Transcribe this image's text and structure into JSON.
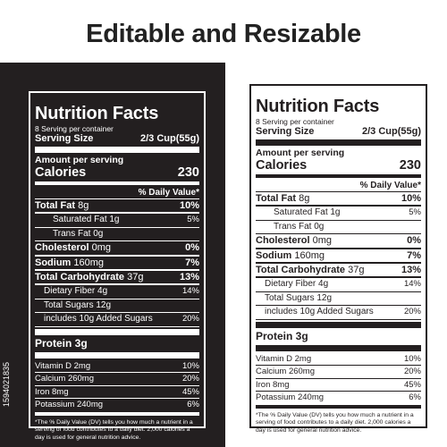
{
  "headline": "Editable and Resizable",
  "stock_id": "1594021835",
  "label": {
    "title": "Nutrition Facts",
    "servings": "8 Serving per container",
    "serving_size_label": "Serving Size",
    "serving_size_value": "2/3 Cup(55g)",
    "amount_per_serving": "Amount per serving",
    "calories_label": "Calories",
    "calories_value": "230",
    "daily_value_header": "% Daily Value*",
    "nutrients": [
      {
        "name": "Total Fat",
        "amount": "8g",
        "dv": "10%",
        "level": 0
      },
      {
        "name": "Saturated Fat 1g",
        "amount": "",
        "dv": "5%",
        "level": 2
      },
      {
        "name": "Trans Fat 0g",
        "amount": "",
        "dv": "",
        "level": 2
      },
      {
        "name": "Cholesterol",
        "amount": "0mg",
        "dv": "0%",
        "level": 0
      },
      {
        "name": "Sodium",
        "amount": "160mg",
        "dv": "7%",
        "level": 0
      },
      {
        "name": "Total Carbohydrate",
        "amount": "37g",
        "dv": "13%",
        "level": 0
      },
      {
        "name": "Dietary Fiber 4g",
        "amount": "",
        "dv": "14%",
        "level": 1
      },
      {
        "name": "Total Sugars 12g",
        "amount": "",
        "dv": "",
        "level": 1
      },
      {
        "name": "includes 10g Added Sugars",
        "amount": "",
        "dv": "20%",
        "level": 1
      }
    ],
    "protein": "Protein 3g",
    "vitamins": [
      {
        "name": "Vitamin D 2mg",
        "dv": "10%"
      },
      {
        "name": "Calcium 260mg",
        "dv": "20%"
      },
      {
        "name": "Iron 8mg",
        "dv": "45%"
      },
      {
        "name": "Potassium 240mg",
        "dv": "6%"
      }
    ],
    "footnote": "*The % Daily Value (DV) tells you how much a nutrient in a serving of food contributes to a daily diet. 2,000 calories a day is used for general nutrition advice."
  },
  "colors": {
    "dark": "#231f20",
    "light": "#ffffff"
  }
}
